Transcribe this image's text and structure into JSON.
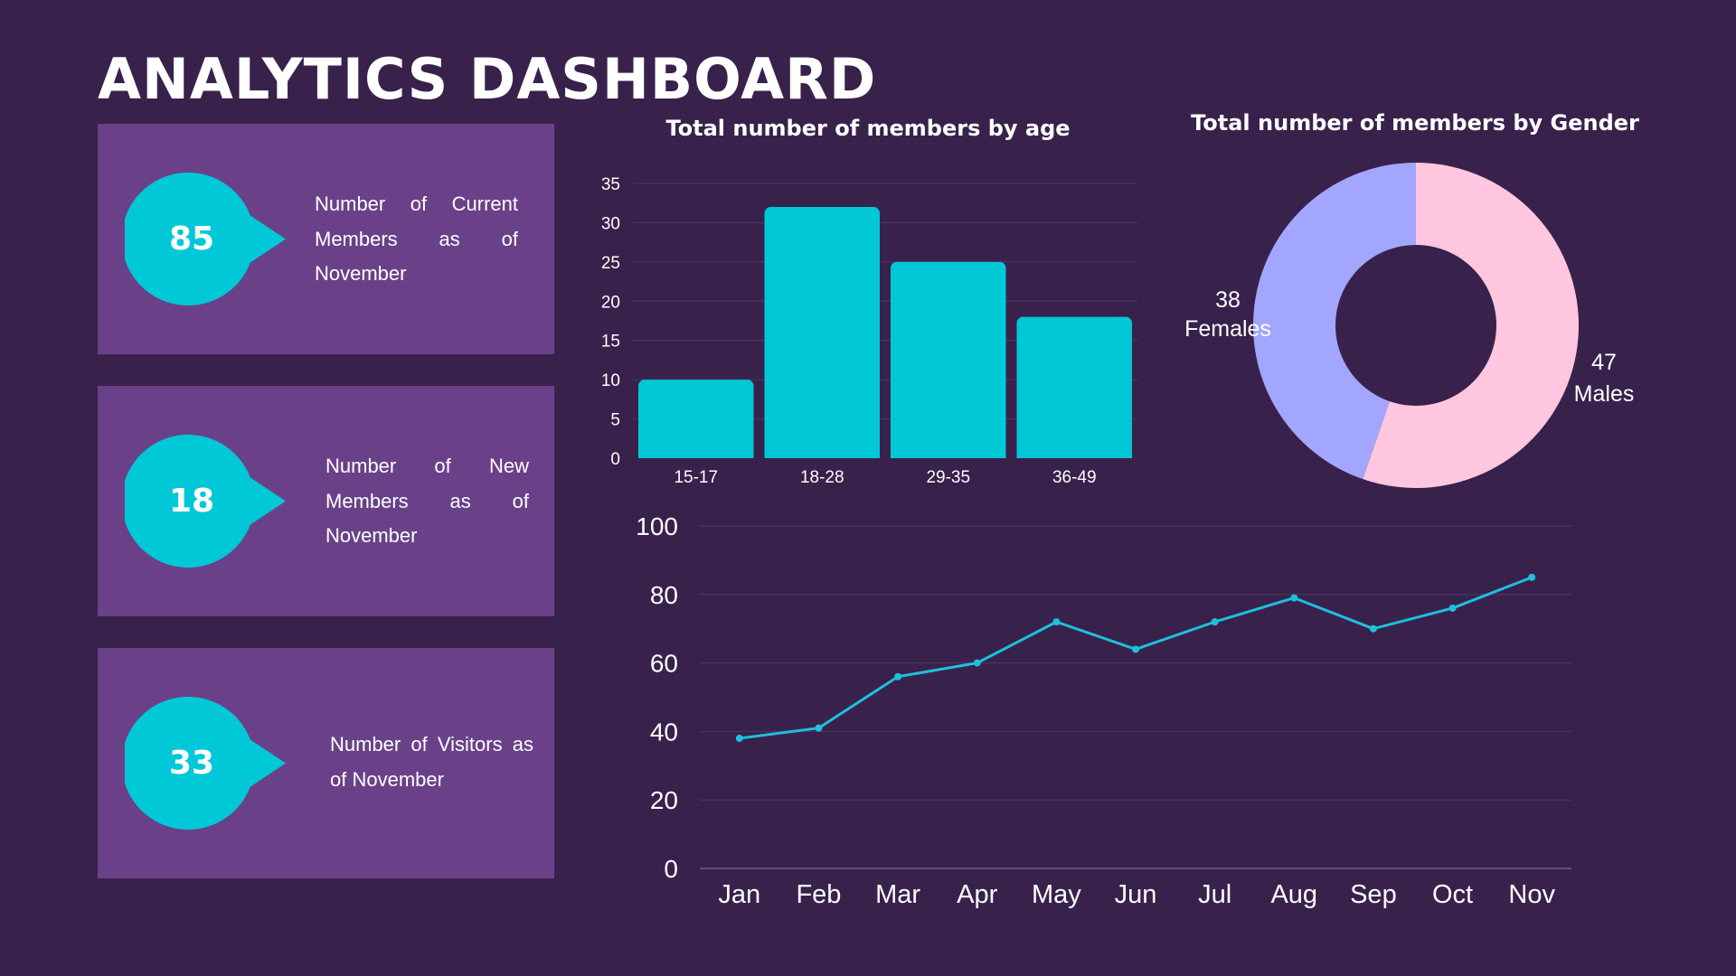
{
  "page": {
    "title": "ANALYTICS DASHBOARD"
  },
  "kpis": [
    {
      "value": "85",
      "text": "Number of Current Members as of November"
    },
    {
      "value": "18",
      "text": "Number of New Members as of November"
    },
    {
      "value": "33",
      "text": "Number of Visitors as of November"
    }
  ],
  "colors": {
    "background": "#38224c",
    "card": "#6a4189",
    "accent": "#00c8d7",
    "bar": "#00c8d7",
    "line": "#1ec0dc",
    "females": "#a3a6ff",
    "males": "#ffc6df"
  },
  "chart_data": [
    {
      "type": "bar",
      "title": "Total number of members by age",
      "categories": [
        "15-17",
        "18-28",
        "29-35",
        "36-49"
      ],
      "values": [
        10,
        32,
        25,
        18
      ],
      "ylim": [
        0,
        35
      ],
      "yticks": [
        0,
        5,
        10,
        15,
        20,
        25,
        30,
        35
      ],
      "grid": true
    },
    {
      "type": "pie",
      "title": "Total number of members by Gender",
      "slices": [
        {
          "label": "Males",
          "value": 47
        },
        {
          "label": "Females",
          "value": 38
        }
      ]
    },
    {
      "type": "line",
      "title": "",
      "x": [
        "Jan",
        "Feb",
        "Mar",
        "Apr",
        "May",
        "Jun",
        "Jul",
        "Aug",
        "Sep",
        "Oct",
        "Nov"
      ],
      "values": [
        38,
        41,
        56,
        60,
        72,
        64,
        72,
        79,
        70,
        76,
        85
      ],
      "ylim": [
        0,
        100
      ],
      "yticks": [
        0,
        20,
        40,
        60,
        80,
        100
      ],
      "grid": true
    }
  ]
}
